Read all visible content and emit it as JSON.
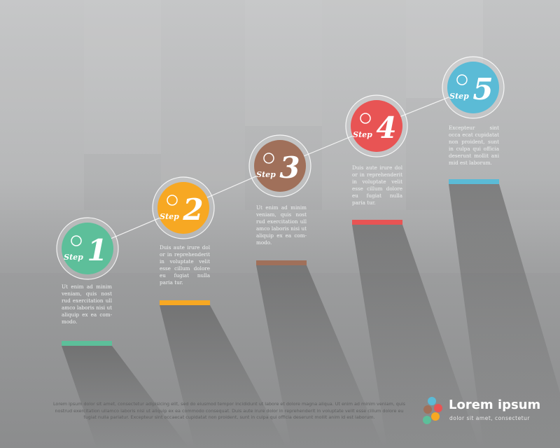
{
  "steps": [
    {
      "label": "Step",
      "number": "1",
      "text": "Ut enim ad minim veniam, quis nost rud exercitation ull amco laboris nisi ut aliquip ex ea com-modo."
    },
    {
      "label": "Step",
      "number": "2",
      "text": "Duis aute irure dol or in reprehenderit in voluptate velit esse cillum dolore eu fugiat nulla paria tur."
    },
    {
      "label": "Step",
      "number": "3",
      "text": "Ut enim ad minim veniam, quis nost rud exercitation ull amco laboris nisi ut aliquip ex ea com-modo."
    },
    {
      "label": "Step",
      "number": "4",
      "text": "Duis aute irure dol or in reprehenderit in voluptate velit esse cillum dolore eu fugiat nulla paria tur."
    },
    {
      "label": "Step",
      "number": "5",
      "text": "Excepteur sint occa ecat cupidatat non proident, sunt in culpa qui officia deserunt mollit ani mid est laborum."
    }
  ],
  "footer": {
    "text": "Lorem ipsum dolor sit amet, consectetur adipisicing elit, sed do eiusmod tempor incididunt ut labore et dolore magna aliqua. Ut enim ad minim veniam, quis nostrud exercitation ullamco laboris nisi ut aliquip ex ea commodo consequat. Duis aute irure dolor in reprehenderit in voluptate velit esse cillum dolore eu fugiat nulla pariatur. Excepteur sint occaecat cupidatat non proident, sunt in culpa qui officia deserunt mollit anim id est laborum."
  },
  "logo": {
    "title": "Lorem ipsum",
    "subtitle": "dolor sit amet, consectetur"
  }
}
